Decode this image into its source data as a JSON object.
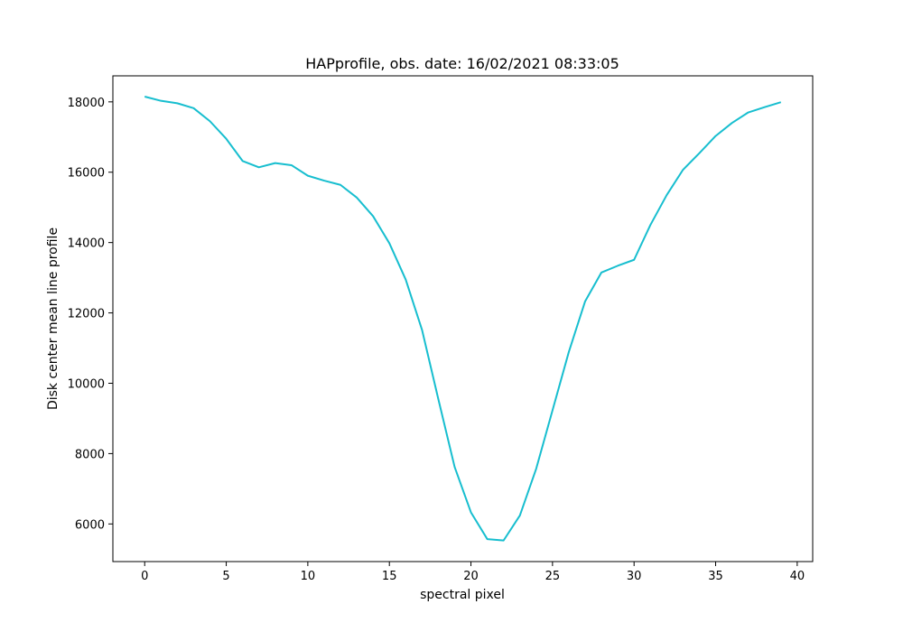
{
  "chart_data": {
    "type": "line",
    "title": "HAPprofile, obs. date: 16/02/2021 08:33:05",
    "xlabel": "spectral pixel",
    "ylabel": "Disk center mean line profile",
    "xlim": [
      -1.95,
      40.95
    ],
    "ylim": [
      4930,
      18740
    ],
    "xticks": [
      0,
      5,
      10,
      15,
      20,
      25,
      30,
      35,
      40
    ],
    "yticks": [
      6000,
      8000,
      10000,
      12000,
      14000,
      16000,
      18000
    ],
    "grid": false,
    "series": [
      {
        "color": "#17becf",
        "x": [
          0,
          1,
          2,
          3,
          4,
          5,
          6,
          7,
          8,
          9,
          10,
          11,
          12,
          13,
          14,
          15,
          16,
          17,
          18,
          19,
          20,
          21,
          22,
          23,
          24,
          25,
          26,
          27,
          28,
          29,
          30,
          31,
          32,
          33,
          34,
          35,
          36,
          37,
          38,
          39
        ],
        "y": [
          18150,
          18030,
          17960,
          17820,
          17450,
          16950,
          16320,
          16140,
          16260,
          16200,
          15900,
          15760,
          15640,
          15280,
          14750,
          13980,
          12950,
          11520,
          9550,
          7620,
          6330,
          5570,
          5530,
          6240,
          7570,
          9230,
          10890,
          12330,
          13150,
          13340,
          13510,
          14500,
          15350,
          16070,
          16540,
          17030,
          17400,
          17700,
          17850,
          17990
        ]
      }
    ]
  }
}
